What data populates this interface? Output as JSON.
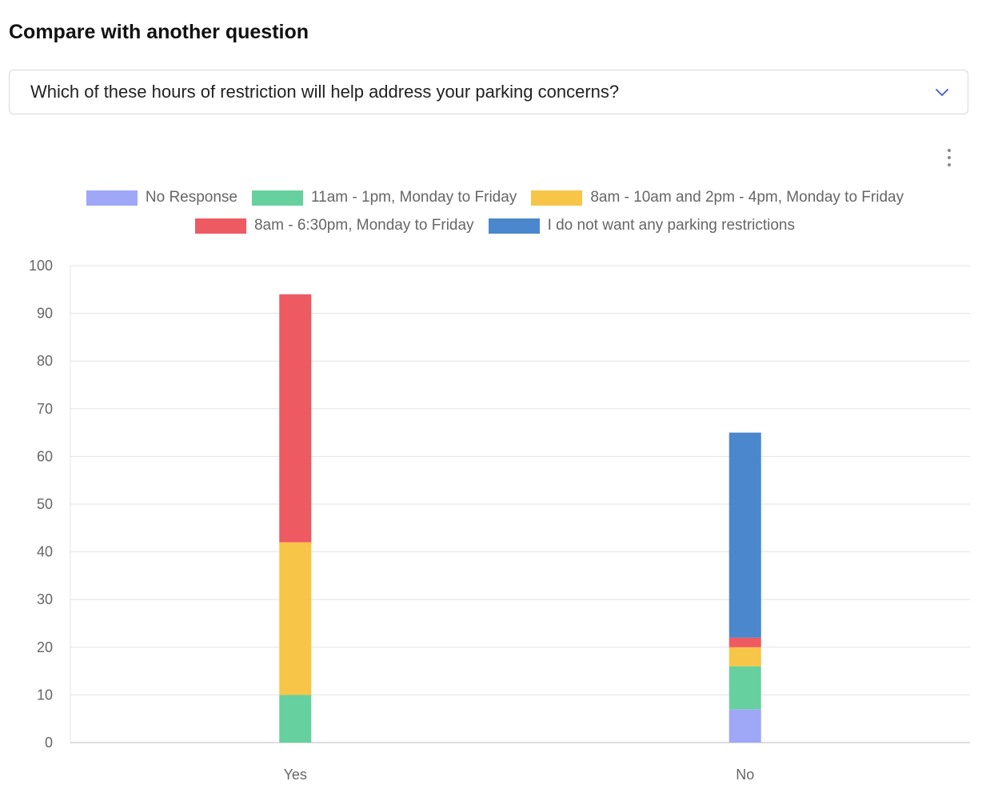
{
  "heading": "Compare with another question",
  "compare_select": {
    "value": "Which of these hours of restriction will help address your parking concerns?"
  },
  "menu_icon": "more-vertical-icon",
  "accent_color": "#3f5bd9",
  "chart_data": {
    "type": "bar",
    "stacked": true,
    "categories": [
      "Yes",
      "No"
    ],
    "series": [
      {
        "name": "No Response",
        "color": "#9ea8f7",
        "values": [
          0,
          7
        ]
      },
      {
        "name": "11am - 1pm, Monday to Friday",
        "color": "#66d19e",
        "values": [
          10,
          9
        ]
      },
      {
        "name": "8am - 10am and 2pm - 4pm, Monday to Friday",
        "color": "#f7c548",
        "values": [
          32,
          4
        ]
      },
      {
        "name": "8am - 6:30pm, Monday to Friday",
        "color": "#ee5a61",
        "values": [
          52,
          2
        ]
      },
      {
        "name": "I do not want any parking restrictions",
        "color": "#4b87cc",
        "values": [
          0,
          43
        ]
      }
    ],
    "ylim": [
      0,
      100
    ],
    "yticks": [
      0,
      10,
      20,
      30,
      40,
      50,
      60,
      70,
      80,
      90,
      100
    ],
    "xlabel": "",
    "ylabel": "",
    "grid": true,
    "legend_position": "top"
  }
}
